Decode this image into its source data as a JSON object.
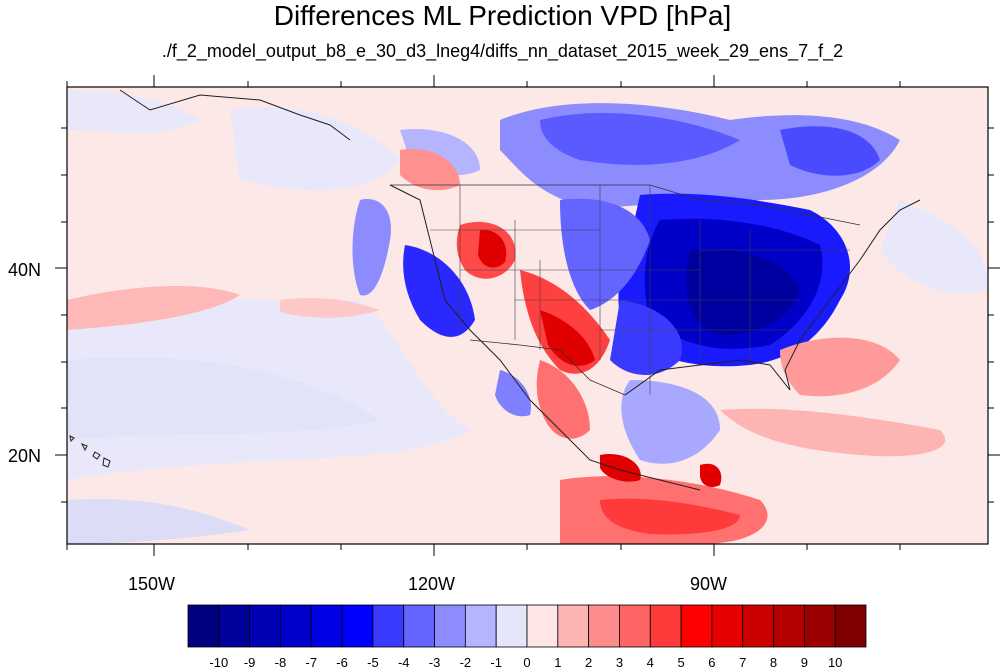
{
  "title": "Differences ML Prediction VPD [hPa]",
  "subtitle": "./f_2_model_output_b8_e_30_d3_lneg4/diffs_nn_dataset_2015_week_29_ens_7_f_2",
  "map": {
    "lon_labels": [
      "150W",
      "120W",
      "90W"
    ],
    "lat_labels": [
      "40N",
      "20N"
    ],
    "ocean_base_color": "#fde8e8"
  },
  "colorbar": {
    "labels": [
      "-10",
      "-9",
      "-8",
      "-7",
      "-6",
      "-5",
      "-4",
      "-3",
      "-2",
      "-1",
      "0",
      "1",
      "2",
      "3",
      "4",
      "5",
      "6",
      "7",
      "8",
      "9",
      "10"
    ],
    "colors": [
      "#000080",
      "#00009a",
      "#0000b4",
      "#0000cd",
      "#0000e6",
      "#0000ff",
      "#3a3aff",
      "#6464ff",
      "#8c8cff",
      "#b4b4ff",
      "#e6e6fa",
      "#ffe6e6",
      "#ffb4b4",
      "#ff8c8c",
      "#ff6464",
      "#ff3a3a",
      "#ff0000",
      "#e60000",
      "#cd0000",
      "#b40000",
      "#9a0000",
      "#800000"
    ]
  }
}
